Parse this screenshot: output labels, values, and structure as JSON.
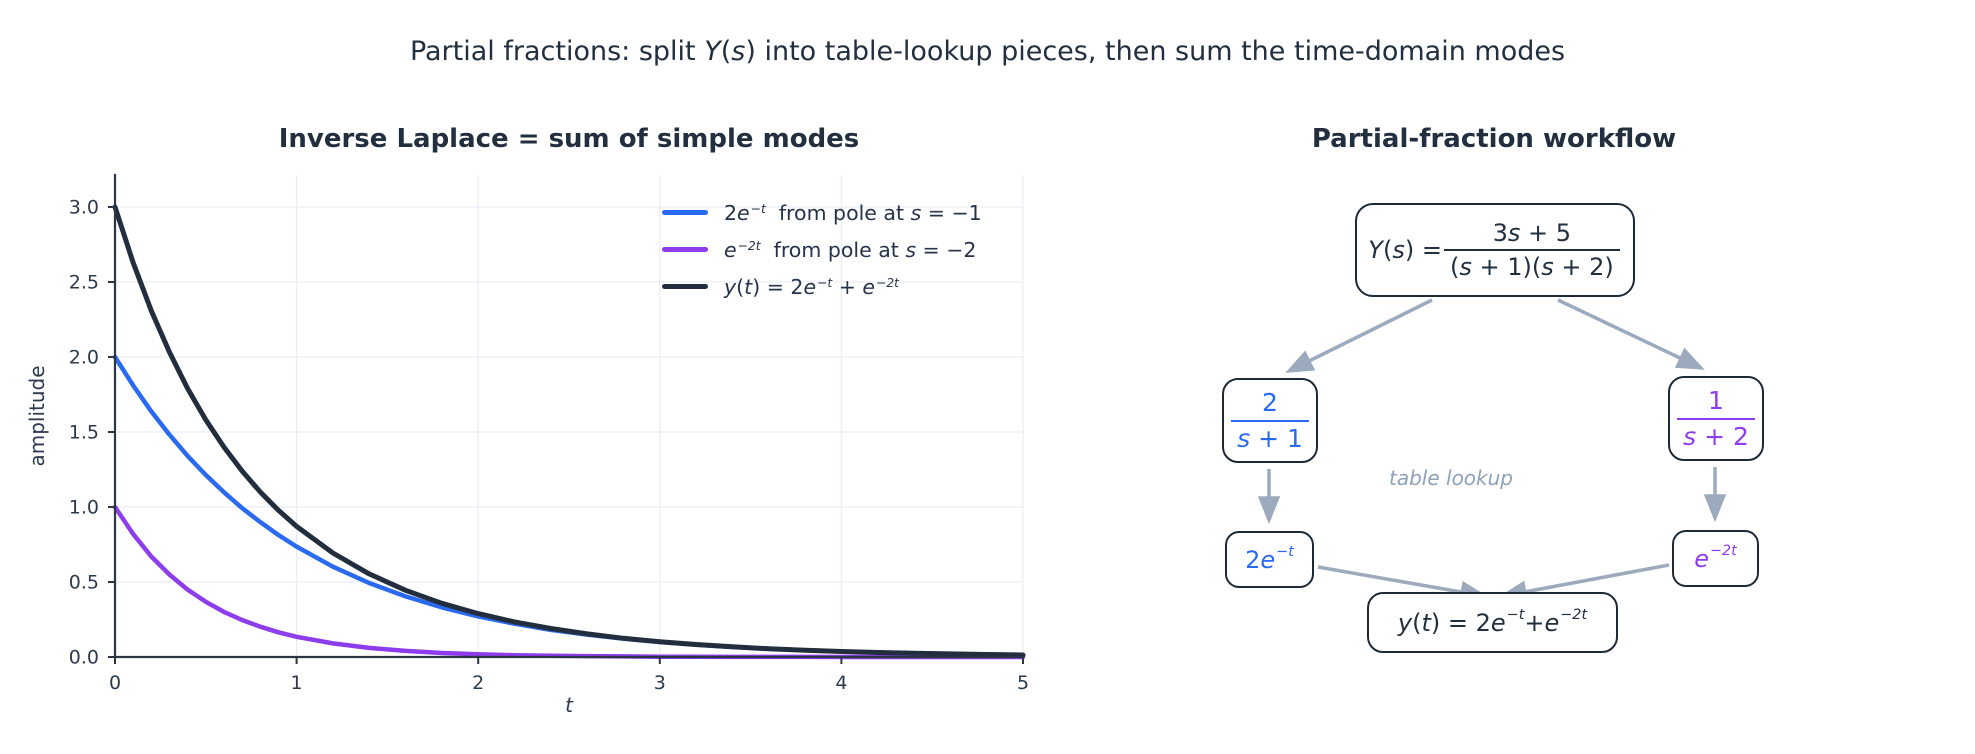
{
  "suptitle": {
    "text": "Partial fractions: split Y(s) into table-lookup pieces, then sum the time-domain modes",
    "parts": [
      {
        "t": "Partial fractions: split "
      },
      {
        "i": "Y"
      },
      {
        "t": "("
      },
      {
        "i": "s"
      },
      {
        "t": ")"
      },
      {
        "t": " into table-lookup pieces, then sum the time-domain modes"
      }
    ]
  },
  "left_panel": {
    "title": "Inverse Laplace = sum of simple modes",
    "ylabel": "amplitude",
    "xlabel": "t",
    "legend": {
      "items": [
        {
          "label": "2e⁻ᵗ  from pole at s = −1",
          "color": "#2a6af0",
          "parts": [
            {
              "t": "2"
            },
            {
              "i": "e"
            },
            {
              "sup": "−t"
            },
            {
              "t": "  from pole at "
            },
            {
              "i": "s"
            },
            {
              "t": " = −1"
            }
          ]
        },
        {
          "label": "e⁻²ᵗ  from pole at s = −2",
          "color": "#8d3deb",
          "parts": [
            {
              "i": "e"
            },
            {
              "sup": "−2t"
            },
            {
              "t": "  from pole at "
            },
            {
              "i": "s"
            },
            {
              "t": " = −2"
            }
          ]
        },
        {
          "label": "y(t) = 2e⁻ᵗ + e⁻²ᵗ",
          "color": "#222e3e",
          "parts": [
            {
              "i": "y"
            },
            {
              "t": "("
            },
            {
              "i": "t"
            },
            {
              "t": ") = 2"
            },
            {
              "i": "e"
            },
            {
              "sup": "−t"
            },
            {
              "t": " + "
            },
            {
              "i": "e"
            },
            {
              "sup": "−2t"
            }
          ]
        }
      ]
    }
  },
  "chart_data": {
    "type": "line",
    "title": "Inverse Laplace = sum of simple modes",
    "xlabel": "t",
    "ylabel": "amplitude",
    "xlim": [
      0,
      5
    ],
    "ylim": [
      0,
      3.2
    ],
    "grid": true,
    "legend_position": "upper right",
    "xticks": {
      "values": [
        0,
        1,
        2,
        3,
        4,
        5
      ],
      "labels": [
        "0",
        "1",
        "2",
        "3",
        "4",
        "5"
      ]
    },
    "yticks": {
      "values": [
        0,
        0.5,
        1,
        1.5,
        2,
        2.5,
        3
      ],
      "labels": [
        "0.0",
        "0.5",
        "1.0",
        "1.5",
        "2.0",
        "2.5",
        "3.0"
      ]
    },
    "x": [
      0,
      0.1,
      0.2,
      0.3,
      0.4,
      0.5,
      0.6,
      0.7,
      0.8,
      0.9,
      1.0,
      1.2,
      1.4,
      1.6,
      1.8,
      2.0,
      2.2,
      2.4,
      2.6,
      2.8,
      3.0,
      3.2,
      3.4,
      3.6,
      3.8,
      4.0,
      4.2,
      4.4,
      4.6,
      4.8,
      5.0
    ],
    "series": [
      {
        "name": "mode-1",
        "label": "2e⁻ᵗ  from pole at s = −1",
        "color": "#2a6af0",
        "width": 4.5,
        "values": [
          2.0,
          1.81,
          1.637,
          1.482,
          1.341,
          1.213,
          1.098,
          0.993,
          0.899,
          0.813,
          0.736,
          0.602,
          0.493,
          0.404,
          0.331,
          0.271,
          0.222,
          0.181,
          0.149,
          0.122,
          0.1,
          0.082,
          0.067,
          0.055,
          0.045,
          0.037,
          0.03,
          0.025,
          0.02,
          0.016,
          0.013
        ]
      },
      {
        "name": "mode-2",
        "label": "e⁻²ᵗ  from pole at s = −2",
        "color": "#8d3deb",
        "width": 4.5,
        "values": [
          1.0,
          0.819,
          0.67,
          0.549,
          0.449,
          0.368,
          0.301,
          0.247,
          0.202,
          0.165,
          0.135,
          0.091,
          0.061,
          0.041,
          0.027,
          0.018,
          0.012,
          0.008,
          0.006,
          0.004,
          0.002,
          0.002,
          0.001,
          0.001,
          0.001,
          0.0,
          0.0,
          0.0,
          0.0,
          0.0,
          0.0
        ]
      },
      {
        "name": "sum",
        "label": "y(t) = 2e⁻ᵗ + e⁻²ᵗ",
        "color": "#222e3e",
        "width": 5,
        "values": [
          3.0,
          2.628,
          2.308,
          2.031,
          1.79,
          1.581,
          1.399,
          1.24,
          1.1,
          0.978,
          0.871,
          0.693,
          0.554,
          0.445,
          0.358,
          0.289,
          0.234,
          0.19,
          0.154,
          0.125,
          0.102,
          0.083,
          0.068,
          0.055,
          0.045,
          0.037,
          0.03,
          0.025,
          0.021,
          0.017,
          0.013
        ]
      }
    ]
  },
  "right_panel": {
    "title": "Partial-fraction workflow",
    "table_lookup_label": "table lookup",
    "boxes": {
      "ys": {
        "text": "Y(s) = (3s + 5)/((s + 1)(s + 2))",
        "parts": [
          {
            "i": "Y"
          },
          {
            "t": "("
          },
          {
            "i": "s"
          },
          {
            "t": ") = "
          },
          {
            "frac": {
              "num": [
                {
                  "t": "3"
                },
                {
                  "i": "s"
                },
                {
                  "t": " + 5"
                }
              ],
              "den": [
                {
                  "t": "("
                },
                {
                  "i": "s"
                },
                {
                  "t": " + 1)("
                },
                {
                  "i": "s"
                },
                {
                  "t": " + 2)"
                }
              ]
            }
          }
        ]
      },
      "term1": {
        "text": "2/(s + 1)",
        "parts": [
          {
            "frac": {
              "num": [
                {
                  "t": "2"
                }
              ],
              "den": [
                {
                  "i": "s"
                },
                {
                  "t": " + 1"
                }
              ]
            }
          }
        ]
      },
      "term2": {
        "text": "1/(s + 2)",
        "parts": [
          {
            "frac": {
              "num": [
                {
                  "t": "1"
                }
              ],
              "den": [
                {
                  "i": "s"
                },
                {
                  "t": " + 2"
                }
              ]
            }
          }
        ]
      },
      "mode1": {
        "text": "2e⁻ᵗ",
        "parts": [
          {
            "t": "2"
          },
          {
            "i": "e"
          },
          {
            "sup": "−t"
          }
        ]
      },
      "mode2": {
        "text": "e⁻²ᵗ",
        "parts": [
          {
            "i": "e"
          },
          {
            "sup": "−2t"
          }
        ]
      },
      "yt": {
        "text": "y(t) = 2e⁻ᵗ + e⁻²ᵗ",
        "parts": [
          {
            "i": "y"
          },
          {
            "t": "("
          },
          {
            "i": "t"
          },
          {
            "t": ") = 2"
          },
          {
            "i": "e"
          },
          {
            "sup": "−t"
          },
          {
            "t": " + "
          },
          {
            "i": "e"
          },
          {
            "sup": "−2t"
          }
        ]
      }
    }
  },
  "colors": {
    "blue_mode": "#2a6af0",
    "purple_mode": "#8d3deb",
    "ink": "#222e3e",
    "arrow": "#9daabd",
    "grid": "#e9eef6",
    "muted_label": "#8ea1bb",
    "box_border": "#1e2937"
  }
}
